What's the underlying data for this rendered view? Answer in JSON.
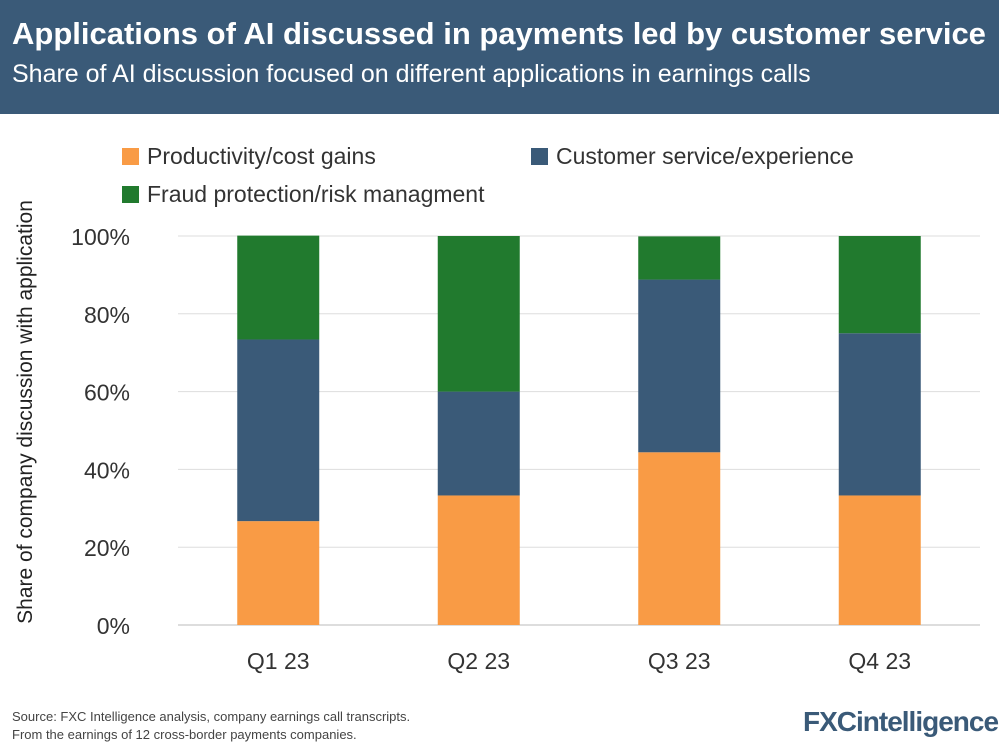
{
  "title": "Applications of AI discussed in payments led by customer service",
  "subtitle": "Share of AI discussion focused on different applications in earnings calls",
  "source_line1": "Source: FXC Intelligence analysis, company earnings call transcripts.",
  "source_line2": "From the earnings of 12 cross-border payments companies.",
  "logo": "FXCintelligence",
  "chart_data": {
    "type": "bar",
    "stacked": true,
    "categories": [
      "Q1 23",
      "Q2 23",
      "Q3 23",
      "Q4 23"
    ],
    "ylabel": "Share of company discussion with application",
    "ylim": [
      0,
      100
    ],
    "yticks": [
      "0%",
      "20%",
      "40%",
      "60%",
      "80%",
      "100%"
    ],
    "grid": true,
    "legend": "top",
    "series": [
      {
        "name": "Productivity/cost gains",
        "color": "#f99b45",
        "values": [
          26.7,
          33.3,
          44.4,
          33.3
        ]
      },
      {
        "name": "Customer service/experience",
        "color": "#3a5a78",
        "values": [
          46.7,
          26.7,
          44.4,
          41.7
        ]
      },
      {
        "name": "Fraud protection/risk managment",
        "color": "#217a2e",
        "values": [
          26.7,
          40.0,
          11.1,
          25.0
        ]
      }
    ]
  }
}
